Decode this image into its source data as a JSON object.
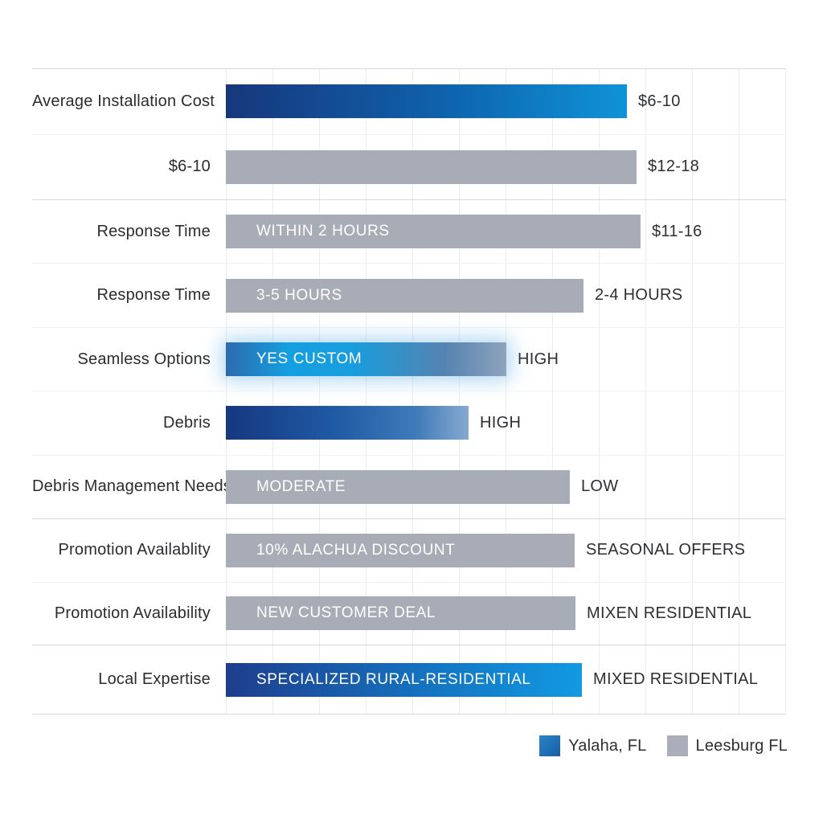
{
  "chart_data": {
    "type": "bar",
    "title": "",
    "orientation": "horizontal",
    "grid": "on",
    "legend_position": "bottom-right",
    "layout": {
      "bar_start_x": 281,
      "chart_left": 40,
      "chart_right": 978,
      "chart_top": 85,
      "chart_bottom": 888,
      "gridline_spacing_px": 58
    },
    "legend": [
      {
        "name": "Yalaha, FL",
        "color": "#1d72b8"
      },
      {
        "name": "Leesburg FL",
        "color": "#a9aeb8"
      }
    ],
    "rows": [
      {
        "label": "Average Installation Cost",
        "series": "Yalaha, FL",
        "bar_text": "",
        "value": "$6-10",
        "bar_end_x": 780,
        "style": "blue"
      },
      {
        "label": "$6-10",
        "series": "Leesburg FL",
        "bar_text": "",
        "value": "$12-18",
        "bar_end_x": 792,
        "style": "gray"
      },
      {
        "label": "Response Time",
        "series": "Leesburg FL",
        "bar_text": "WITHIN 2 HOURS",
        "value": "$11-16",
        "bar_end_x": 797,
        "style": "gray"
      },
      {
        "label": "Response Time",
        "series": "Leesburg FL",
        "bar_text": "3-5 HOURS",
        "value": "2-4 HOURS",
        "bar_end_x": 726,
        "style": "gray"
      },
      {
        "label": "Seamless Options",
        "series": "Yalaha, FL",
        "bar_text": "YES CUSTOM",
        "value": "HIGH",
        "bar_end_x": 630,
        "style": "blue-glow"
      },
      {
        "label": "Debris",
        "series": "Yalaha, FL",
        "bar_text": "",
        "value": "HIGH",
        "bar_end_x": 583,
        "style": "blue-fade"
      },
      {
        "label": "Debris Management Needs",
        "series": "Leesburg FL",
        "bar_text": "MODERATE",
        "value": "LOW",
        "bar_end_x": 709,
        "style": "gray"
      },
      {
        "label": "Promotion Availablity",
        "series": "Leesburg FL",
        "bar_text": "10% ALACHUA DISCOUNT",
        "value": "SEASONAL OFFERS",
        "bar_end_x": 715,
        "style": "gray"
      },
      {
        "label": "Promotion Availability",
        "series": "Leesburg FL",
        "bar_text": "NEW CUSTOMER DEAL",
        "value": "MIXEN RESIDENTIAL",
        "bar_end_x": 716,
        "style": "gray"
      },
      {
        "label": "Local Expertise",
        "series": "Yalaha, FL",
        "bar_text": "SPECIALIZED RURAL-RESIDENTIAL",
        "value": "MIXED RESIDENTIAL",
        "bar_end_x": 724,
        "style": "blue-deep"
      }
    ],
    "groups": [
      {
        "rows": [
          0,
          1
        ]
      },
      {
        "rows": [
          2,
          3,
          4,
          5,
          6
        ]
      },
      {
        "rows": [
          7,
          8
        ]
      },
      {
        "rows": [
          9
        ]
      }
    ]
  },
  "colors": {
    "bar_gray": "#a7acb6",
    "bar_navy": "#17377c",
    "bar_bright_blue": "#0f93d8",
    "gridline": "#eaedf0",
    "separator": "#d6d9de",
    "label_text": "#2a2c2f",
    "value_text": "#2d2f33"
  }
}
